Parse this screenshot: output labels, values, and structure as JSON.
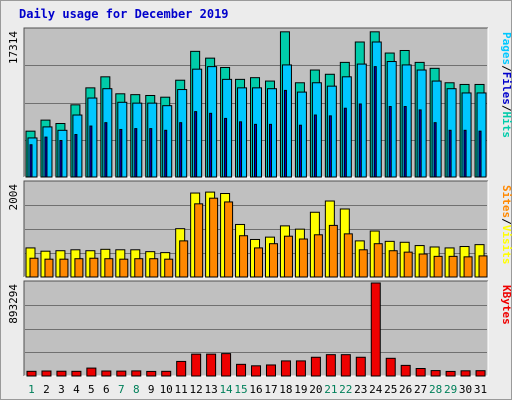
{
  "title": "Daily usage for December 2019",
  "colors": {
    "hits": "#00ccaa",
    "files": "#0000cc",
    "pages": "#00c8ff",
    "visits": "#ffff00",
    "sites": "#ff8800",
    "kbytes": "#ee0000",
    "weekday": "#000000",
    "weekend": "#00805a",
    "slash": "#000000"
  },
  "chart_data": [
    {
      "type": "bar",
      "name": "hits-files-pages",
      "ymax_label": "17314",
      "ylim": [
        0,
        17314
      ],
      "legend": [
        "Pages",
        "Files",
        "Hits"
      ],
      "categories": [
        "1",
        "2",
        "3",
        "4",
        "5",
        "6",
        "7",
        "8",
        "9",
        "10",
        "11",
        "12",
        "13",
        "14",
        "15",
        "16",
        "17",
        "18",
        "19",
        "20",
        "21",
        "22",
        "23",
        "24",
        "25",
        "26",
        "27",
        "28",
        "29",
        "30",
        "31"
      ],
      "series": [
        {
          "name": "Hits",
          "values": [
            5400,
            6700,
            6300,
            8500,
            10500,
            11800,
            9800,
            9700,
            9600,
            9400,
            11400,
            14800,
            14000,
            12900,
            11500,
            11700,
            11300,
            17100,
            11100,
            12600,
            12100,
            13500,
            15900,
            17100,
            14600,
            14900,
            13500,
            12800,
            11100,
            10900,
            10900
          ]
        },
        {
          "name": "Files",
          "values": [
            3800,
            4700,
            4300,
            5000,
            6000,
            6400,
            5600,
            5700,
            5700,
            5500,
            6400,
            7700,
            7500,
            6900,
            6500,
            6200,
            6200,
            10200,
            6100,
            7300,
            7200,
            8100,
            8600,
            13000,
            8300,
            8300,
            7900,
            6400,
            5500,
            5500,
            5400
          ]
        },
        {
          "name": "Pages",
          "values": [
            4600,
            5900,
            5500,
            7300,
            9300,
            10400,
            8800,
            8700,
            8700,
            8400,
            10300,
            12700,
            13000,
            11500,
            10500,
            10500,
            10400,
            13200,
            10000,
            11100,
            10700,
            11800,
            13300,
            15900,
            13600,
            13200,
            12600,
            11300,
            10400,
            9900,
            9900
          ]
        }
      ]
    },
    {
      "type": "bar",
      "name": "visits-sites",
      "ymax_label": "2004",
      "ylim": [
        0,
        2004
      ],
      "legend": [
        "Sites",
        "Visits"
      ],
      "categories": [
        "1",
        "2",
        "3",
        "4",
        "5",
        "6",
        "7",
        "8",
        "9",
        "10",
        "11",
        "12",
        "13",
        "14",
        "15",
        "16",
        "17",
        "18",
        "19",
        "20",
        "21",
        "22",
        "23",
        "24",
        "25",
        "26",
        "27",
        "28",
        "29",
        "30",
        "31"
      ],
      "series": [
        {
          "name": "Visits",
          "values": [
            620,
            550,
            560,
            580,
            560,
            590,
            580,
            580,
            540,
            520,
            1030,
            1790,
            1810,
            1780,
            1120,
            800,
            850,
            1090,
            1020,
            1380,
            1620,
            1450,
            770,
            980,
            760,
            740,
            670,
            640,
            620,
            650,
            690
          ]
        },
        {
          "name": "Sites",
          "values": [
            400,
            380,
            380,
            390,
            400,
            390,
            380,
            390,
            390,
            380,
            770,
            1560,
            1680,
            1600,
            880,
            620,
            710,
            870,
            810,
            900,
            1100,
            920,
            580,
            710,
            560,
            530,
            490,
            440,
            440,
            430,
            450
          ]
        }
      ]
    },
    {
      "type": "bar",
      "name": "kbytes",
      "ymax_label": "893294",
      "ylim": [
        0,
        893294
      ],
      "legend": [
        "KBytes"
      ],
      "categories": [
        "1",
        "2",
        "3",
        "4",
        "5",
        "6",
        "7",
        "8",
        "9",
        "10",
        "11",
        "12",
        "13",
        "14",
        "15",
        "16",
        "17",
        "18",
        "19",
        "20",
        "21",
        "22",
        "23",
        "24",
        "25",
        "26",
        "27",
        "28",
        "29",
        "30",
        "31"
      ],
      "series": [
        {
          "name": "KBytes",
          "values": [
            45000,
            48000,
            46000,
            45000,
            76000,
            48000,
            47000,
            49000,
            44000,
            45000,
            140000,
            210000,
            210000,
            215000,
            112000,
            98000,
            106000,
            145000,
            145000,
            180000,
            205000,
            205000,
            180000,
            893294,
            170000,
            102000,
            72000,
            52000,
            44000,
            50000,
            51000
          ]
        }
      ]
    }
  ]
}
